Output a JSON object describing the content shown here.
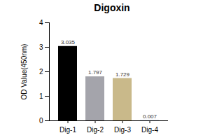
{
  "chart_data": {
    "type": "bar",
    "title": "Digoxin",
    "y_label": "OD Value(450nm)",
    "categories": [
      "Dig-1",
      "Dig-2",
      "Dig-3",
      "Dig-4"
    ],
    "values": [
      3.035,
      1.797,
      1.729,
      0.007
    ],
    "colors": [
      "#000000",
      "#a4a4ab",
      "#c9b98a",
      "#6f8fc0"
    ],
    "ylim": [
      0,
      4
    ],
    "yticks": [
      0,
      1,
      2,
      3,
      4
    ],
    "grid": false,
    "data_labels": true
  }
}
